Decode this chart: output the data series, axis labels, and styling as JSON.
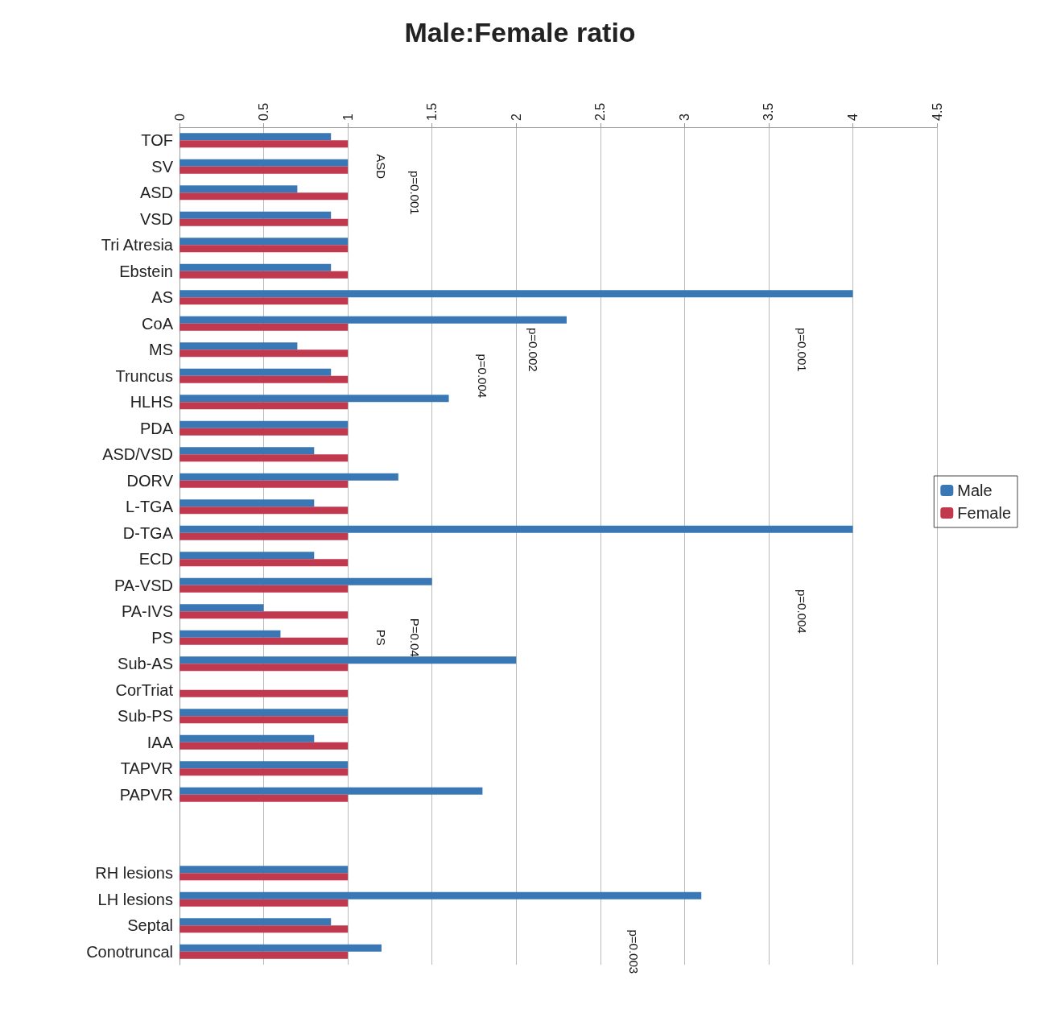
{
  "chart_data": {
    "type": "bar",
    "orientation": "horizontal",
    "title": "Male:Female ratio",
    "categories": [
      "TOF",
      "SV",
      "ASD",
      "VSD",
      "Tri Atresia",
      "Ebstein",
      "AS",
      "CoA",
      "MS",
      "Truncus",
      "HLHS",
      "PDA",
      "ASD/VSD",
      "DORV",
      "L-TGA",
      "D-TGA",
      "ECD",
      "PA-VSD",
      "PA-IVS",
      "PS",
      "Sub-AS",
      "CorTriat",
      "Sub-PS",
      "IAA",
      "TAPVR",
      "PAPVR",
      null,
      null,
      "RH lesions",
      "LH lesions",
      "Septal",
      "Conotruncal"
    ],
    "series": [
      {
        "name": "Male",
        "color": "#3a78b5",
        "values": [
          0.9,
          1,
          0.7,
          0.9,
          1,
          0.9,
          4,
          2.3,
          0.7,
          0.9,
          1.6,
          1,
          0.8,
          1.3,
          0.8,
          4,
          0.8,
          1.5,
          0.5,
          0.6,
          2,
          0,
          1,
          0.8,
          1,
          1.8,
          null,
          null,
          1,
          3.1,
          0.9,
          1.2
        ]
      },
      {
        "name": "Female",
        "color": "#c0394f",
        "values": [
          1,
          1,
          1,
          1,
          1,
          1,
          1,
          1,
          1,
          1,
          1,
          1,
          1,
          1,
          1,
          1,
          1,
          1,
          1,
          1,
          1,
          1,
          1,
          1,
          1,
          1,
          null,
          null,
          1,
          1,
          1,
          1
        ]
      }
    ],
    "xlim": [
      0,
      4.5
    ],
    "xticks": [
      0,
      0.5,
      1,
      1.5,
      2,
      2.5,
      3,
      3.5,
      4,
      4.5
    ],
    "grid": "x",
    "legend": "right",
    "annotations": [
      "p=0.001",
      "ASD",
      "p=0.002",
      "p=0.004",
      "p=0.001",
      "p=0.004",
      "P=0.04",
      "PS",
      "p=0.003"
    ]
  }
}
